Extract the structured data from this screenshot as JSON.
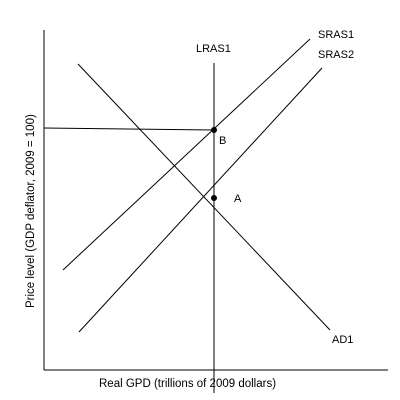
{
  "diagram": {
    "x_axis_label": "Real GPD (trillions of 2009 dollars)",
    "y_axis_label": "Price level (GDP deflator, 2009 = 100)",
    "curves": {
      "lras": "LRAS1",
      "sras1": "SRAS1",
      "sras2": "SRAS2",
      "ad": "AD1"
    },
    "points": {
      "a": "A",
      "b": "B"
    },
    "colors": {
      "line": "#000000",
      "background": "#ffffff"
    }
  }
}
